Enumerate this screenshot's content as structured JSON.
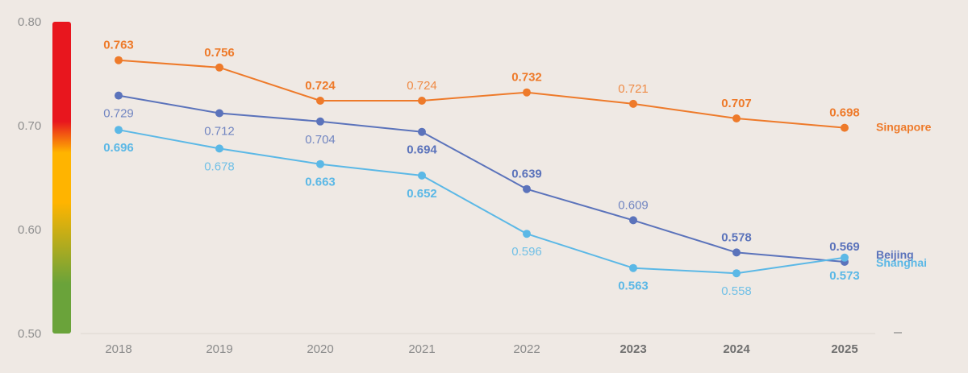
{
  "chart_data": {
    "type": "line",
    "title": "",
    "xlabel": "",
    "ylabel": "",
    "x": [
      "2018",
      "2019",
      "2020",
      "2021",
      "2022",
      "2023",
      "2024",
      "2025"
    ],
    "bold_x": [
      "2023",
      "2024",
      "2025"
    ],
    "ylim": [
      0.5,
      0.8
    ],
    "yticks": [
      "0.50",
      "0.60",
      "0.70",
      "0.80"
    ],
    "grid": false,
    "legend": "end-of-line labels",
    "color_scale": [
      "#6aa33a",
      "#ffb400",
      "#e8161e"
    ],
    "series": [
      {
        "name": "Singapore",
        "color": "#ee7a2a",
        "values": [
          0.763,
          0.756,
          0.724,
          0.724,
          0.732,
          0.721,
          0.707,
          0.698
        ],
        "labels": [
          "0.763",
          "0.756",
          "0.724",
          "0.724",
          "0.732",
          "0.721",
          "0.707",
          "0.698"
        ],
        "label_pos": [
          "above",
          "above",
          "above",
          "above",
          "above",
          "above",
          "above",
          "above"
        ],
        "label_bold": [
          true,
          true,
          true,
          false,
          true,
          false,
          true,
          true
        ]
      },
      {
        "name": "Beijing",
        "color": "#5b73bb",
        "values": [
          0.729,
          0.712,
          0.704,
          0.694,
          0.639,
          0.609,
          0.578,
          0.569
        ],
        "labels": [
          "0.729",
          "0.712",
          "0.704",
          "0.694",
          "0.639",
          "0.609",
          "0.578",
          "0.569"
        ],
        "label_pos": [
          "below",
          "below",
          "below",
          "below",
          "above",
          "above",
          "above",
          "above"
        ],
        "label_bold": [
          false,
          false,
          false,
          true,
          true,
          false,
          true,
          true
        ]
      },
      {
        "name": "Shanghai",
        "color": "#5bb8e6",
        "values": [
          0.696,
          0.678,
          0.663,
          0.652,
          0.596,
          0.563,
          0.558,
          0.573
        ],
        "labels": [
          "0.696",
          "0.678",
          "0.663",
          "0.652",
          "0.596",
          "0.563",
          "0.558",
          "0.573"
        ],
        "label_pos": [
          "below",
          "below",
          "below",
          "below",
          "below",
          "below",
          "below",
          "below"
        ],
        "label_bold": [
          true,
          false,
          true,
          true,
          false,
          true,
          false,
          true
        ]
      }
    ]
  }
}
